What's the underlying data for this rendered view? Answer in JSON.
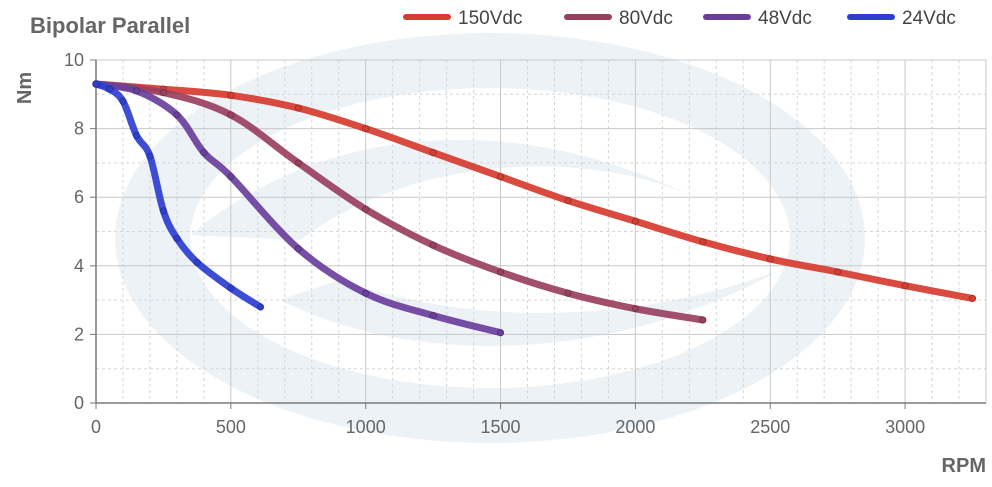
{
  "chart_data": {
    "type": "line",
    "title": "Bipolar Parallel",
    "xlabel": "RPM",
    "ylabel": "Nm",
    "xlim": [
      0,
      3300
    ],
    "ylim": [
      0,
      10
    ],
    "x_ticks": [
      "0",
      "500",
      "1000",
      "1500",
      "2000",
      "2500",
      "3000"
    ],
    "y_ticks": [
      "0",
      "2",
      "4",
      "6",
      "8",
      "10"
    ],
    "x_tick_values": [
      0,
      500,
      1000,
      1500,
      2000,
      2500,
      3000
    ],
    "y_tick_values": [
      0,
      2,
      4,
      6,
      8,
      10
    ],
    "grid": true,
    "legend_position": "top",
    "series": [
      {
        "name": "150Vdc",
        "color": "#d63c2f",
        "points": [
          [
            0,
            9.3
          ],
          [
            250,
            9.15
          ],
          [
            500,
            8.97
          ],
          [
            750,
            8.6
          ],
          [
            1000,
            8.0
          ],
          [
            1250,
            7.3
          ],
          [
            1500,
            6.6
          ],
          [
            1750,
            5.9
          ],
          [
            2000,
            5.3
          ],
          [
            2250,
            4.7
          ],
          [
            2500,
            4.2
          ],
          [
            2750,
            3.82
          ],
          [
            3000,
            3.42
          ],
          [
            3250,
            3.05
          ]
        ]
      },
      {
        "name": "80Vdc",
        "color": "#99405e",
        "points": [
          [
            0,
            9.3
          ],
          [
            250,
            9.05
          ],
          [
            500,
            8.4
          ],
          [
            750,
            7.0
          ],
          [
            1000,
            5.65
          ],
          [
            1250,
            4.6
          ],
          [
            1500,
            3.82
          ],
          [
            1750,
            3.2
          ],
          [
            2000,
            2.75
          ],
          [
            2250,
            2.42
          ]
        ]
      },
      {
        "name": "48Vdc",
        "color": "#6a3f9c",
        "points": [
          [
            0,
            9.3
          ],
          [
            150,
            9.1
          ],
          [
            300,
            8.4
          ],
          [
            400,
            7.3
          ],
          [
            500,
            6.6
          ],
          [
            750,
            4.5
          ],
          [
            1000,
            3.2
          ],
          [
            1250,
            2.55
          ],
          [
            1500,
            2.05
          ]
        ]
      },
      {
        "name": "24Vdc",
        "color": "#2c3fd0",
        "points": [
          [
            0,
            9.3
          ],
          [
            50,
            9.15
          ],
          [
            100,
            8.8
          ],
          [
            150,
            7.8
          ],
          [
            200,
            7.2
          ],
          [
            250,
            5.6
          ],
          [
            300,
            4.8
          ],
          [
            375,
            4.1
          ],
          [
            500,
            3.35
          ],
          [
            610,
            2.8
          ]
        ]
      }
    ]
  }
}
